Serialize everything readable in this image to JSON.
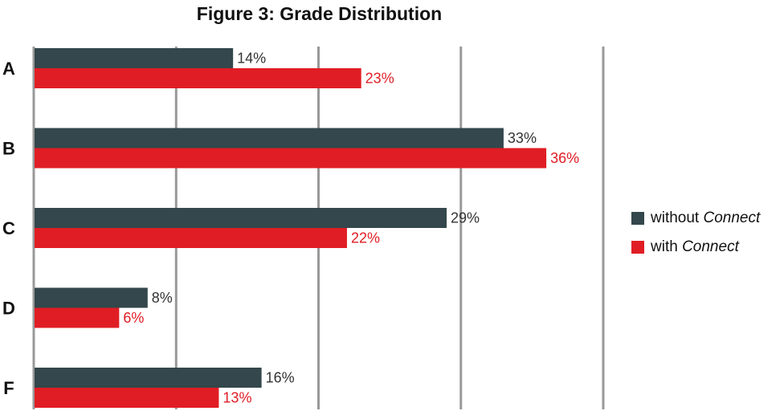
{
  "chart_data": {
    "type": "bar",
    "orientation": "horizontal",
    "title": "Figure 3: Grade Distribution",
    "categories": [
      "A",
      "B",
      "C",
      "D",
      "F"
    ],
    "series": [
      {
        "name": "without Connect",
        "name_plain": "without ",
        "name_italic": "Connect",
        "color": "#33474c",
        "values": [
          14,
          33,
          29,
          8,
          16
        ],
        "labels": [
          "14%",
          "33%",
          "29%",
          "8%",
          "16%"
        ]
      },
      {
        "name": "with Connect",
        "name_plain": "with ",
        "name_italic": "Connect",
        "color": "#e01d24",
        "values": [
          23,
          36,
          22,
          6,
          13
        ],
        "labels": [
          "23%",
          "36%",
          "22%",
          "6%",
          "13%"
        ]
      }
    ],
    "xlim": [
      0,
      40
    ],
    "xticks": [
      0,
      10,
      20,
      30,
      40
    ],
    "grid": true,
    "legend_position": "right"
  },
  "colors": {
    "without": "#33474c",
    "with": "#e01d24",
    "grid": "#999999",
    "text": "#111111"
  }
}
